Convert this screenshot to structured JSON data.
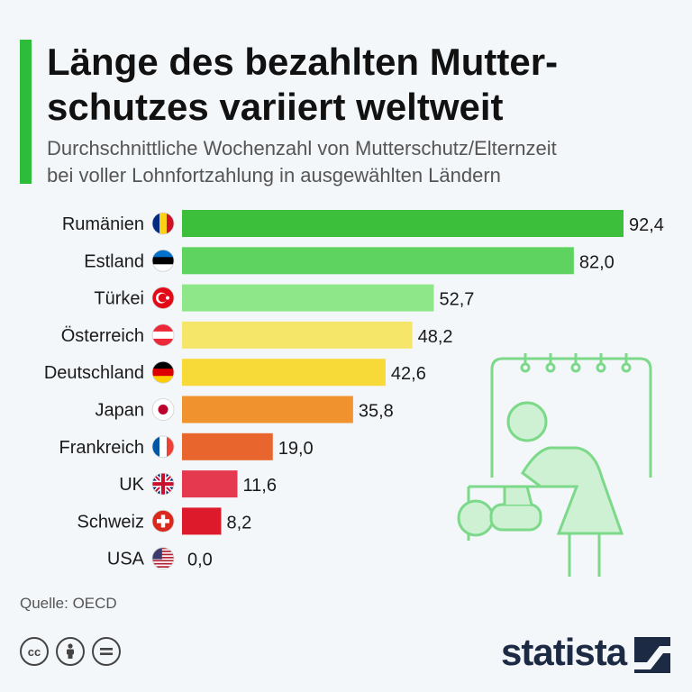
{
  "header": {
    "title": "Länge des bezahlten Mutter-\nschutzes variiert weltweit",
    "subtitle": "Durchschnittliche Wochenzahl von Mutterschutz/Elternzeit\nbei voller Lohnfortzahlung in ausgewählten Ländern"
  },
  "chart_data": {
    "type": "bar",
    "orientation": "horizontal",
    "title": "Länge des bezahlten Mutterschutzes variiert weltweit",
    "subtitle": "Durchschnittliche Wochenzahl von Mutterschutz/Elternzeit bei voller Lohnfortzahlung in ausgewählten Ländern",
    "categories": [
      "Rumänien",
      "Estland",
      "Türkei",
      "Österreich",
      "Deutschland",
      "Japan",
      "Frankreich",
      "UK",
      "Schweiz",
      "USA"
    ],
    "values": [
      92.4,
      82.0,
      52.7,
      48.2,
      42.6,
      35.8,
      19.0,
      11.6,
      8.2,
      0.0
    ],
    "value_labels": [
      "92,4",
      "82,0",
      "52,7",
      "48,2",
      "42,6",
      "35,8",
      "19,0",
      "11,6",
      "8,2",
      "0,0"
    ],
    "bar_colors": [
      "#3cc03c",
      "#5fd35f",
      "#8ee88a",
      "#f5e66a",
      "#f7d938",
      "#f0922e",
      "#e8652e",
      "#e53950",
      "#dd1a2c",
      "#dd1a2c"
    ],
    "flag_icons": [
      "romania-flag-icon",
      "estonia-flag-icon",
      "turkey-flag-icon",
      "austria-flag-icon",
      "germany-flag-icon",
      "japan-flag-icon",
      "france-flag-icon",
      "uk-flag-icon",
      "switzerland-flag-icon",
      "usa-flag-icon"
    ],
    "xlim": [
      0,
      92.4
    ],
    "xlabel": "",
    "ylabel": "",
    "grid": false
  },
  "footer": {
    "source": "Quelle: OECD",
    "brand": "statista",
    "license_icons": [
      "cc-icon",
      "attribution-icon",
      "no-derivatives-icon"
    ]
  },
  "colors": {
    "accent": "#2dbd3a",
    "background": "#f4f7fa",
    "illustration": "#7dd98a",
    "brand": "#1c2a44"
  }
}
